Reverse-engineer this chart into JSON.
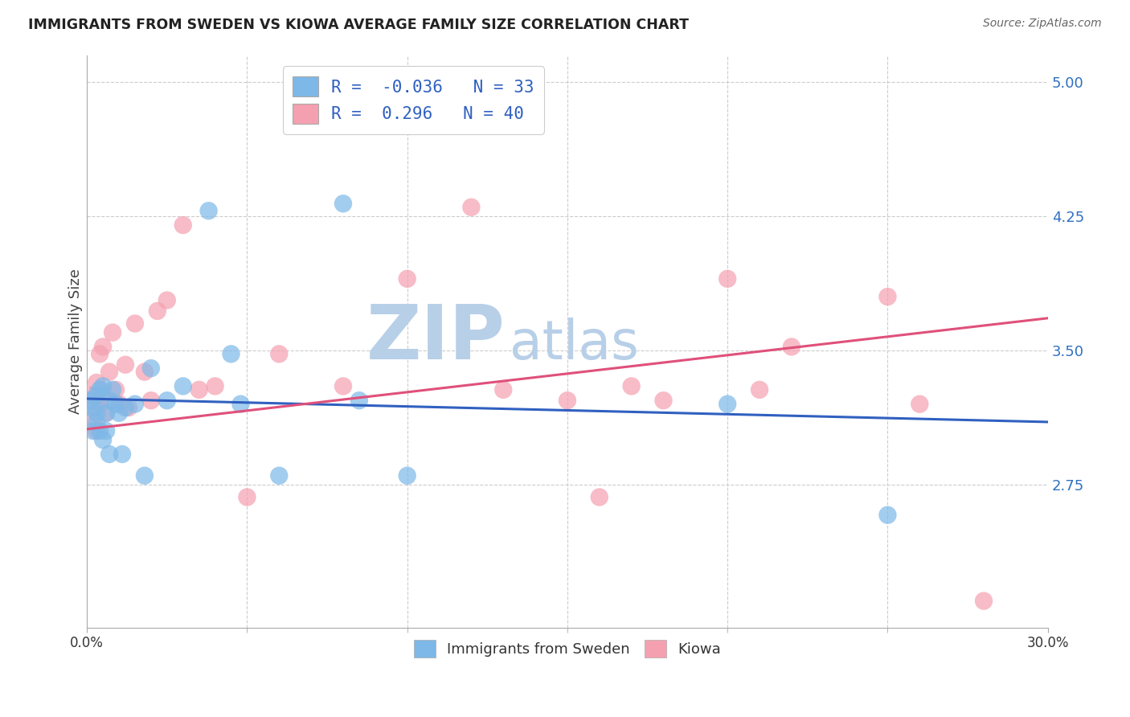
{
  "title": "IMMIGRANTS FROM SWEDEN VS KIOWA AVERAGE FAMILY SIZE CORRELATION CHART",
  "source": "Source: ZipAtlas.com",
  "ylabel": "Average Family Size",
  "yticks": [
    2.75,
    3.5,
    4.25,
    5.0
  ],
  "xtick_labels": [
    "0.0%",
    "30.0%"
  ],
  "xmin": 0.0,
  "xmax": 0.3,
  "ymin": 1.95,
  "ymax": 5.15,
  "sweden_R": -0.036,
  "sweden_N": 33,
  "kiowa_R": 0.296,
  "kiowa_N": 40,
  "sweden_color": "#7db8e8",
  "kiowa_color": "#f4a0b0",
  "sweden_line_color": "#3060c0",
  "kiowa_line_color": "#e0507a",
  "watermark_zip": "ZIP",
  "watermark_atlas": "atlas",
  "watermark_color": "#b8cfe8",
  "background": "#ffffff",
  "grid_color": "#cccccc",
  "sweden_line_y0": 3.23,
  "sweden_line_y1": 3.1,
  "kiowa_line_y0": 3.06,
  "kiowa_line_y1": 3.68,
  "sweden_points_x": [
    0.001,
    0.002,
    0.002,
    0.003,
    0.003,
    0.003,
    0.004,
    0.004,
    0.005,
    0.005,
    0.006,
    0.006,
    0.007,
    0.007,
    0.008,
    0.009,
    0.01,
    0.011,
    0.012,
    0.015,
    0.018,
    0.02,
    0.025,
    0.03,
    0.038,
    0.045,
    0.048,
    0.06,
    0.08,
    0.085,
    0.1,
    0.2,
    0.25
  ],
  "sweden_points_y": [
    3.22,
    3.18,
    3.05,
    3.25,
    3.15,
    3.1,
    3.28,
    3.05,
    3.3,
    3.0,
    3.15,
    3.05,
    3.22,
    2.92,
    3.28,
    3.2,
    3.15,
    2.92,
    3.18,
    3.2,
    2.8,
    3.4,
    3.22,
    3.3,
    4.28,
    3.48,
    3.2,
    2.8,
    4.32,
    3.22,
    2.8,
    3.2,
    2.58
  ],
  "kiowa_points_x": [
    0.001,
    0.002,
    0.002,
    0.003,
    0.003,
    0.004,
    0.004,
    0.005,
    0.005,
    0.006,
    0.007,
    0.008,
    0.009,
    0.01,
    0.012,
    0.013,
    0.015,
    0.018,
    0.02,
    0.022,
    0.025,
    0.03,
    0.035,
    0.04,
    0.05,
    0.06,
    0.08,
    0.1,
    0.12,
    0.13,
    0.15,
    0.16,
    0.17,
    0.18,
    0.2,
    0.21,
    0.22,
    0.25,
    0.26,
    0.28
  ],
  "kiowa_points_y": [
    3.25,
    3.18,
    3.1,
    3.32,
    3.05,
    3.2,
    3.48,
    3.25,
    3.52,
    3.15,
    3.38,
    3.6,
    3.28,
    3.2,
    3.42,
    3.18,
    3.65,
    3.38,
    3.22,
    3.72,
    3.78,
    4.2,
    3.28,
    3.3,
    2.68,
    3.48,
    3.3,
    3.9,
    4.3,
    3.28,
    3.22,
    2.68,
    3.3,
    3.22,
    3.9,
    3.28,
    3.52,
    3.8,
    3.2,
    2.1
  ]
}
